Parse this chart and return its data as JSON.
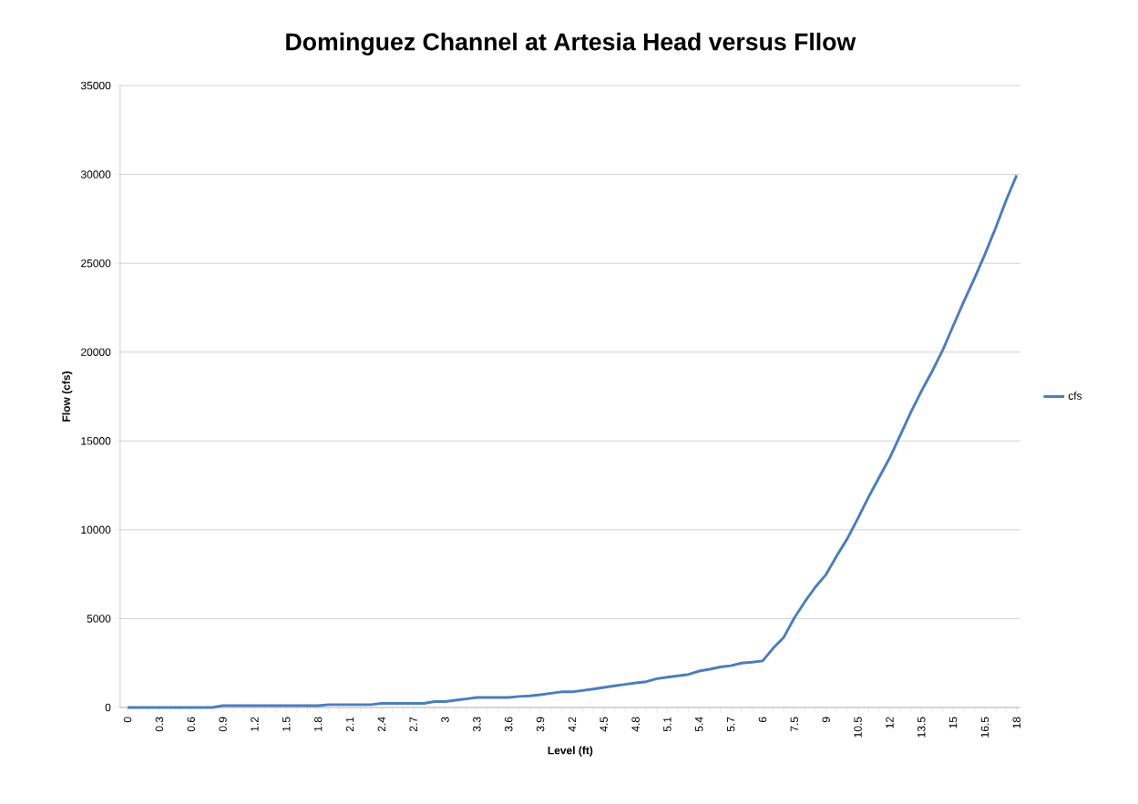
{
  "chart_data": {
    "type": "line",
    "title": "Dominguez Channel at Artesia Head versus Fllow",
    "xlabel": "Level (ft)",
    "ylabel": "Flow (cfs)",
    "categories": [
      "0",
      null,
      null,
      "0.3",
      null,
      null,
      "0.6",
      null,
      null,
      "0.9",
      null,
      null,
      "1.2",
      null,
      null,
      "1.5",
      null,
      null,
      "1.8",
      null,
      null,
      "2.1",
      null,
      null,
      "2.4",
      null,
      null,
      "2.7",
      null,
      null,
      "3",
      null,
      null,
      "3.3",
      null,
      null,
      "3.6",
      null,
      null,
      "3.9",
      null,
      null,
      "4.2",
      null,
      null,
      "4.5",
      null,
      null,
      "4.8",
      null,
      null,
      "5.1",
      null,
      null,
      "5.4",
      null,
      null,
      "5.7",
      null,
      null,
      "6",
      null,
      null,
      "7.5",
      null,
      null,
      "9",
      null,
      null,
      "10.5",
      null,
      null,
      "12",
      null,
      null,
      "13.5",
      null,
      null,
      "15",
      null,
      null,
      "16.5",
      null,
      null,
      "18"
    ],
    "series": [
      {
        "name": "cfs",
        "color": "#4a7ebb",
        "values": [
          0,
          0,
          0,
          0,
          0,
          0,
          0,
          0,
          0,
          100,
          100,
          100,
          100,
          100,
          100,
          100,
          100,
          100,
          100,
          160,
          160,
          160,
          160,
          160,
          230,
          230,
          230,
          230,
          230,
          330,
          330,
          410,
          480,
          560,
          560,
          560,
          560,
          620,
          650,
          720,
          800,
          880,
          880,
          960,
          1040,
          1130,
          1220,
          1300,
          1380,
          1450,
          1620,
          1700,
          1780,
          1860,
          2050,
          2150,
          2280,
          2350,
          2500,
          2550,
          2620,
          3340,
          3950,
          5050,
          5960,
          6790,
          7490,
          8530,
          9500,
          10640,
          11830,
          12940,
          14040,
          15320,
          16610,
          17800,
          18900,
          20090,
          21470,
          22840,
          24130,
          25500,
          26970,
          28530,
          29950
        ]
      }
    ],
    "ylim": [
      0,
      35000
    ],
    "yticks": [
      0,
      5000,
      10000,
      15000,
      20000,
      25000,
      30000,
      35000
    ],
    "grid": "y",
    "legend": "right",
    "marker": "none",
    "line_style": "solid"
  }
}
